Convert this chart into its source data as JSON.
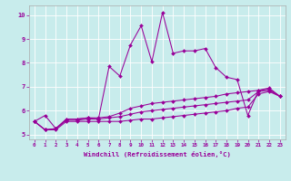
{
  "xlabel": "Windchill (Refroidissement éolien,°C)",
  "xlim": [
    -0.5,
    23.5
  ],
  "ylim": [
    4.8,
    10.4
  ],
  "yticks": [
    5,
    6,
    7,
    8,
    9,
    10
  ],
  "xticks": [
    0,
    1,
    2,
    3,
    4,
    5,
    6,
    7,
    8,
    9,
    10,
    11,
    12,
    13,
    14,
    15,
    16,
    17,
    18,
    19,
    20,
    21,
    22,
    23
  ],
  "bg_color": "#c8ecec",
  "line_color": "#990099",
  "grid_color": "#ffffff",
  "series": [
    [
      5.55,
      5.8,
      5.25,
      5.65,
      5.65,
      5.7,
      5.65,
      7.85,
      7.45,
      8.75,
      9.55,
      8.05,
      10.1,
      8.4,
      8.5,
      8.5,
      8.6,
      7.8,
      7.4,
      7.3,
      5.8,
      6.85,
      6.95,
      6.6
    ],
    [
      5.55,
      5.2,
      5.25,
      5.65,
      5.65,
      5.7,
      5.7,
      5.75,
      5.9,
      6.1,
      6.2,
      6.3,
      6.35,
      6.4,
      6.45,
      6.5,
      6.55,
      6.6,
      6.7,
      6.75,
      6.8,
      6.85,
      6.9,
      6.6
    ],
    [
      5.55,
      5.2,
      5.25,
      5.6,
      5.6,
      5.65,
      5.65,
      5.7,
      5.75,
      5.85,
      5.95,
      6.0,
      6.05,
      6.1,
      6.15,
      6.2,
      6.25,
      6.3,
      6.35,
      6.4,
      6.45,
      6.8,
      6.85,
      6.6
    ],
    [
      5.55,
      5.2,
      5.2,
      5.55,
      5.55,
      5.55,
      5.55,
      5.55,
      5.55,
      5.6,
      5.65,
      5.65,
      5.7,
      5.75,
      5.8,
      5.85,
      5.9,
      5.95,
      6.0,
      6.1,
      6.15,
      6.7,
      6.8,
      6.6
    ]
  ]
}
